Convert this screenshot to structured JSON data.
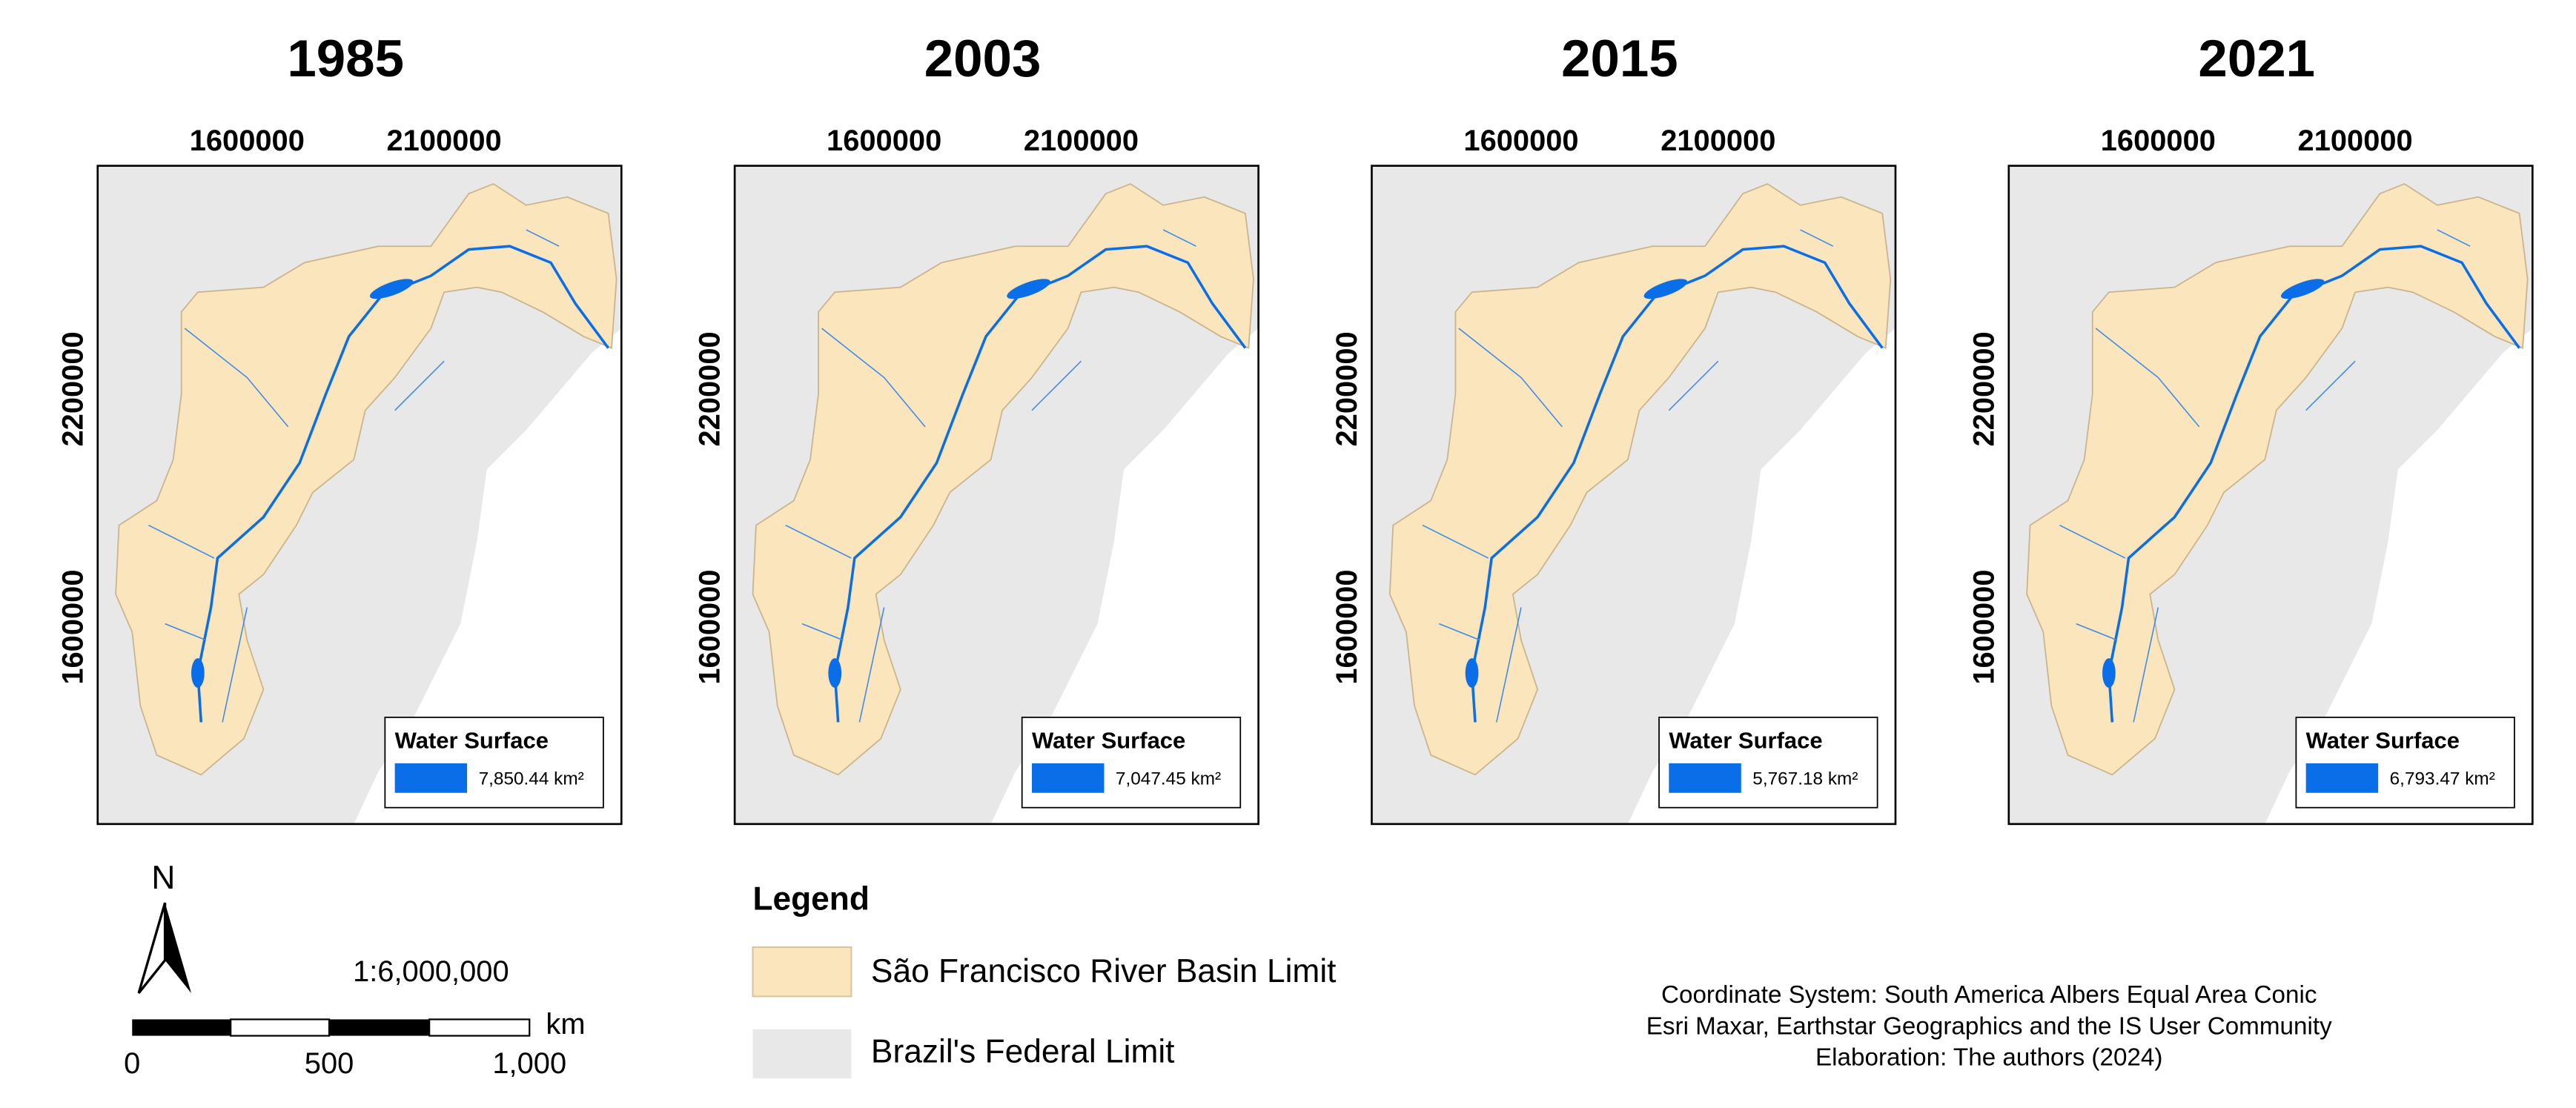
{
  "panels": [
    {
      "year": "1985",
      "x_labels": [
        "1600000",
        "2100000"
      ],
      "y_labels": [
        "2200000",
        "1600000"
      ],
      "legend_title": "Water Surface",
      "legend_value": "7,850.44 km²"
    },
    {
      "year": "2003",
      "x_labels": [
        "1600000",
        "2100000"
      ],
      "y_labels": [
        "2200000",
        "1600000"
      ],
      "legend_title": "Water Surface",
      "legend_value": "7,047.45 km²"
    },
    {
      "year": "2015",
      "x_labels": [
        "1600000",
        "2100000"
      ],
      "y_labels": [
        "2200000",
        "1600000"
      ],
      "legend_title": "Water Surface",
      "legend_value": "5,767.18 km²"
    },
    {
      "year": "2021",
      "x_labels": [
        "1600000",
        "2100000"
      ],
      "y_labels": [
        "2200000",
        "1600000"
      ],
      "legend_title": "Water Surface",
      "legend_value": "6,793.47 km²"
    }
  ],
  "north": "N",
  "scale": "1:6,000,000",
  "scale_bar": {
    "labels": [
      "0",
      "500",
      "1,000"
    ],
    "unit": "km"
  },
  "legend": {
    "title": "Legend",
    "items": [
      "São Francisco River Basin Limit",
      "Brazil's Federal Limit"
    ]
  },
  "credits": [
    "Coordinate System: South America Albers Equal Area Conic",
    "Esri Maxar, Earthstar Geographics and the IS User Community",
    "Elaboration: The authors (2024)"
  ]
}
